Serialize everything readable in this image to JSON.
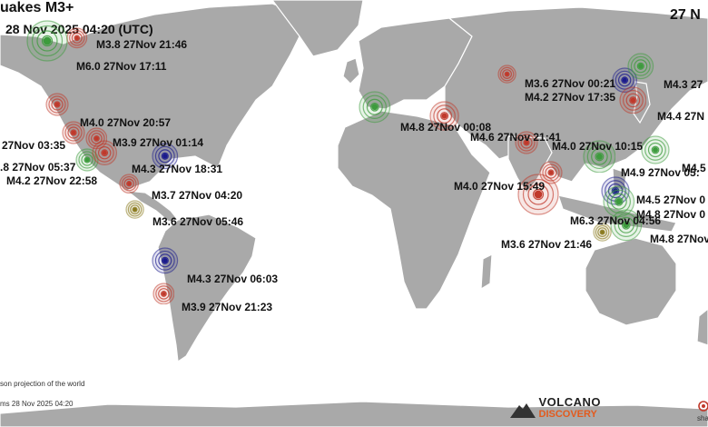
{
  "header": {
    "title": "uakes M3+",
    "timestamp": "28 Nov 2025 04:20 (UTC)",
    "right_title": "27 N"
  },
  "footer": {
    "projection": "son projection of the world",
    "stamp": "ms 28 Nov 2025 04:20",
    "logo_main": "VOLCANO",
    "logo_sub": "DISCOVERY",
    "share": "sha"
  },
  "colors": {
    "land": "#a9a9a9",
    "red": "#c0392b",
    "green": "#3d9b3d",
    "blue": "#1a1a8c",
    "olive": "#8a7a1e"
  },
  "quakes": [
    {
      "label": "M3.8 27Nov 21:46",
      "color": "red"
    },
    {
      "label": "M6.0 27Nov 17:11",
      "color": "green"
    },
    {
      "label": "M4.0 27Nov 20:57",
      "color": "red"
    },
    {
      "label": "27Nov 03:35",
      "color": "red"
    },
    {
      "label": "M3.9 27Nov 01:14",
      "color": "red"
    },
    {
      "label": ".8 27Nov 05:37",
      "color": "green"
    },
    {
      "label": "M4.3 27Nov 18:31",
      "color": "blue"
    },
    {
      "label": "M4.2 27Nov 22:58",
      "color": "red"
    },
    {
      "label": "M3.7 27Nov 04:20",
      "color": "red"
    },
    {
      "label": "M3.6 27Nov 05:46",
      "color": "olive"
    },
    {
      "label": "M4.3 27Nov 06:03",
      "color": "blue"
    },
    {
      "label": "M3.9 27Nov 21:23",
      "color": "red"
    },
    {
      "label": "M4.8 27Nov 00:08",
      "color": "green"
    },
    {
      "label": "M4.6 27Nov 21:41",
      "color": "red"
    },
    {
      "label": "M3.6 27Nov 00:21",
      "color": "red"
    },
    {
      "label": "M4.2 27Nov 17:35",
      "color": "blue"
    },
    {
      "label": "M4.3 27",
      "color": "green"
    },
    {
      "label": "M4.4 27N",
      "color": "red"
    },
    {
      "label": "M4.0 27Nov 10:15",
      "color": "red"
    },
    {
      "label": "M4.9 27Nov 05:",
      "color": "green"
    },
    {
      "label": "M4.5",
      "color": "green"
    },
    {
      "label": "M4.0 27Nov 15:49",
      "color": "red"
    },
    {
      "label": "M4.5 27Nov 0",
      "color": "blue"
    },
    {
      "label": "M4.8 27Nov 0",
      "color": "green"
    },
    {
      "label": "M6.3 27Nov 04:56",
      "color": "red"
    },
    {
      "label": "M3.6 27Nov 21:46",
      "color": "olive"
    },
    {
      "label": "M4.8 27Nov",
      "color": "green"
    }
  ]
}
